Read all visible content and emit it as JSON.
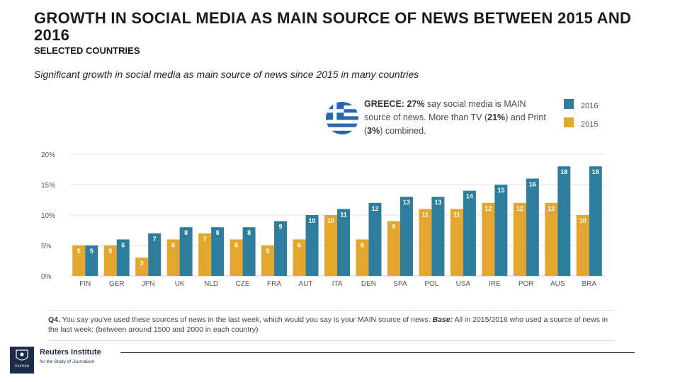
{
  "header": {
    "title": "GROWTH IN SOCIAL MEDIA AS MAIN SOURCE OF NEWS BETWEEN 2015 AND 2016",
    "subtitle": "SELECTED COUNTRIES",
    "lead": "Significant growth in social media as main source of news since 2015 in many countries"
  },
  "callout": {
    "country": "GREECE:",
    "share": "27%",
    "text_1": "say social media is MAIN source of news. More than TV (",
    "tv": "21%",
    "text_2": ") and Print (",
    "print": "3%",
    "text_3": ") combined."
  },
  "footnote": {
    "question": "Q4.",
    "text": "You say you've used these sources of news in the last week, which would you say is your MAIN source of news.",
    "base_label": "Base:",
    "base_text": "All in 2015/2016 who used a source of news in the last week: (between around 1500 and 2000 in each country)"
  },
  "logo": {
    "crest_text": "OXFORD",
    "brand": "Reuters Institute",
    "brand_sub": "for the Study of Journalism"
  },
  "colors": {
    "s2016": "#2f7d9c",
    "s2015": "#e3a72f",
    "grid": "#e1e1e1",
    "axis_text": "#555555"
  },
  "chart_data": {
    "type": "bar",
    "categories": [
      "FIN",
      "GER",
      "JPN",
      "UK",
      "NLD",
      "CZE",
      "FRA",
      "AUT",
      "ITA",
      "DEN",
      "SPA",
      "POL",
      "USA",
      "IRE",
      "POR",
      "AUS",
      "BRA"
    ],
    "series": [
      {
        "name": "2015",
        "color": "#e3a72f",
        "values": [
          5,
          5,
          3,
          6,
          7,
          6,
          5,
          6,
          10,
          6,
          9,
          11,
          11,
          12,
          12,
          12,
          10
        ]
      },
      {
        "name": "2016",
        "color": "#2f7d9c",
        "values": [
          5,
          6,
          7,
          8,
          8,
          8,
          9,
          10,
          11,
          12,
          13,
          13,
          14,
          15,
          16,
          18,
          18
        ]
      }
    ],
    "y_ticks": [
      "0%",
      "5%",
      "10%",
      "15%",
      "20%"
    ],
    "ylim": [
      0,
      20
    ],
    "legend": [
      "2016",
      "2015"
    ],
    "legend_placement": "top-right",
    "grid": true
  }
}
